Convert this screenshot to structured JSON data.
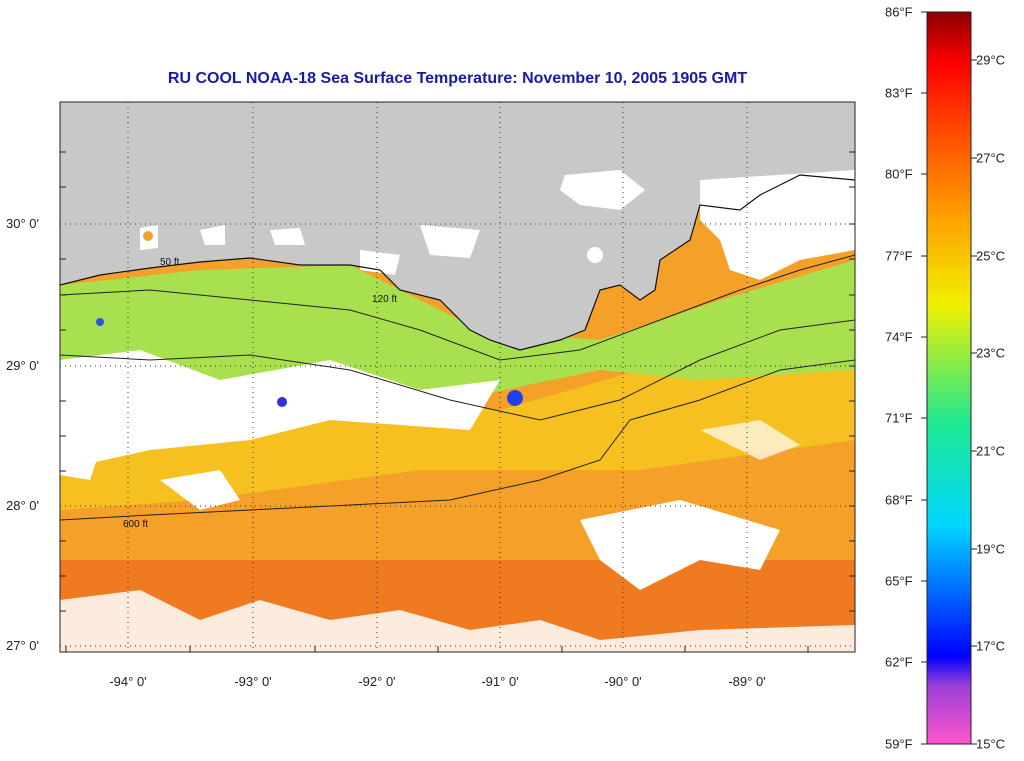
{
  "title": "RU COOL  NOAA-18  Sea Surface Temperature:  November 10, 2005 1905 GMT",
  "latitude_labels": [
    "30° 0'",
    "29° 0'",
    "28° 0'",
    "27° 0'"
  ],
  "longitude_labels": [
    "-94° 0'",
    "-93° 0'",
    "-92° 0'",
    "-91° 0'",
    "-90° 0'",
    "-89° 0'"
  ],
  "contour_labels": [
    "50 ft",
    "120 ft",
    "600 ft"
  ],
  "colorbar": {
    "fahrenheit_labels": [
      "86°F",
      "83°F",
      "80°F",
      "77°F",
      "74°F",
      "71°F",
      "68°F",
      "65°F",
      "62°F",
      "59°F"
    ],
    "celsius_labels": [
      "29°C",
      "27°C",
      "25°C",
      "23°C",
      "21°C",
      "19°C",
      "17°C",
      "15°C"
    ],
    "colors": [
      "#ff55cc",
      "#8a3fcf",
      "#0000ff",
      "#00c8ff",
      "#20e890",
      "#f0f000",
      "#ffa000",
      "#ff4000",
      "#ff0000",
      "#8b0000"
    ]
  },
  "colors": {
    "land": "#c8c8c8",
    "cloud": "#ffffff",
    "warm_water": "#f5a028",
    "mid_water": "#f5d020",
    "nearshore_water": "#a8e050",
    "title_text": "#1a1aa8"
  }
}
